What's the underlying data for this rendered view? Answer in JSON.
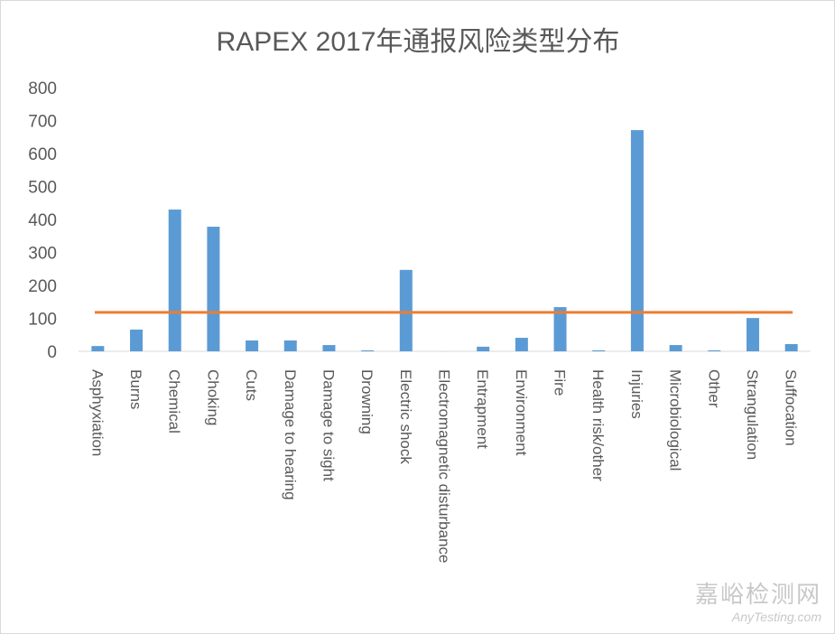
{
  "chart_data": {
    "type": "bar",
    "title": "RAPEX 2017年通报风险类型分布",
    "categories": [
      "Asphyxiation",
      "Burns",
      "Chemical",
      "Choking",
      "Cuts",
      "Damage to hearing",
      "Damage to sight",
      "Drowning",
      "Electric shock",
      "Electromagnetic disturbance",
      "Entrapment",
      "Environment",
      "Fire",
      "Health risk/other",
      "Injuries",
      "Microbiological",
      "Other",
      "Strangulation",
      "Suffocation"
    ],
    "values": [
      16,
      66,
      430,
      378,
      33,
      33,
      19,
      3,
      247,
      0,
      14,
      41,
      134,
      3,
      671,
      19,
      3,
      101,
      22
    ],
    "reference_line": {
      "value": 118,
      "color": "#ED7D31"
    },
    "ylim": [
      0,
      800
    ],
    "yticks": [
      0,
      100,
      200,
      300,
      400,
      500,
      600,
      700,
      800
    ],
    "bar_color": "#5B9BD5",
    "grid": false,
    "legend": "none",
    "xlabel": "",
    "ylabel": ""
  },
  "watermark": {
    "line1": "嘉峪检测网",
    "line2": "AnyTesting.com"
  }
}
